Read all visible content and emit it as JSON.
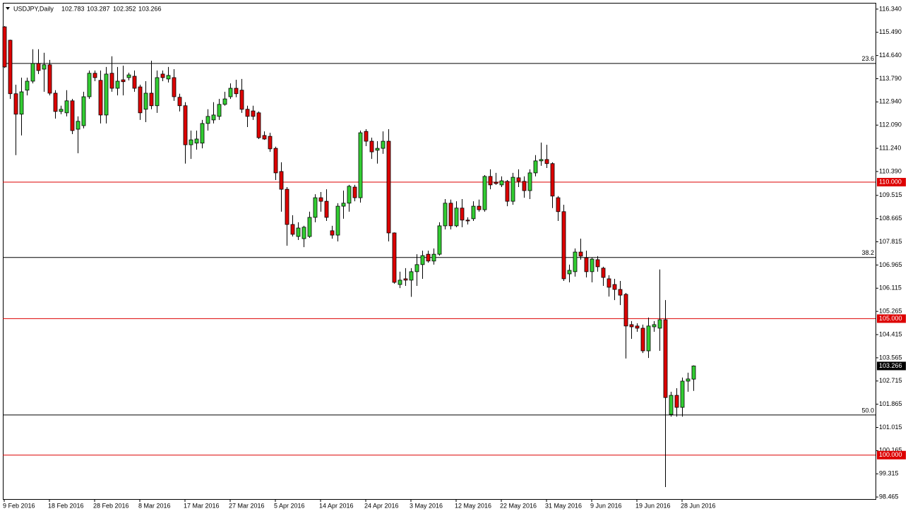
{
  "chart_data": {
    "type": "candlestick",
    "title": "USDJPY,Daily",
    "categories": [
      "9 Feb 2016",
      null,
      null,
      null,
      null,
      null,
      null,
      null,
      "18 Feb 2016",
      null,
      null,
      null,
      null,
      null,
      null,
      null,
      "28 Feb 2016",
      null,
      null,
      null,
      null,
      null,
      null,
      null,
      "8 Mar 2016",
      null,
      null,
      null,
      null,
      null,
      null,
      null,
      "17 Mar 2016",
      null,
      null,
      null,
      null,
      null,
      null,
      null,
      "27 Mar 2016",
      null,
      null,
      null,
      null,
      null,
      null,
      null,
      "5 Apr 2016",
      null,
      null,
      null,
      null,
      null,
      null,
      null,
      "14 Apr 2016",
      null,
      null,
      null,
      null,
      null,
      null,
      null,
      "24 Apr 2016",
      null,
      null,
      null,
      null,
      null,
      null,
      null,
      "3 May 2016",
      null,
      null,
      null,
      null,
      null,
      null,
      null,
      "12 May 2016",
      null,
      null,
      null,
      null,
      null,
      null,
      null,
      "22 May 2016",
      null,
      null,
      null,
      null,
      null,
      null,
      null,
      "31 May 2016",
      null,
      null,
      null,
      null,
      null,
      null,
      null,
      "9 Jun 2016",
      null,
      null,
      null,
      null,
      null,
      null,
      null,
      "19 Jun 2016",
      null,
      null,
      null,
      null,
      null,
      null,
      null,
      "28 Jun 2016",
      null,
      null
    ],
    "open": [
      115.69,
      115.2,
      113.24,
      112.49,
      113.37,
      113.7,
      114.35,
      114.14,
      114.3,
      113.26,
      112.59,
      112.54,
      112.98,
      111.94,
      112.07,
      113.13,
      113.99,
      113.73,
      112.46,
      113.99,
      113.44,
      113.75,
      113.83,
      113.88,
      113.49,
      112.67,
      113.26,
      112.8,
      113.96,
      113.78,
      113.83,
      113.11,
      112.8,
      111.37,
      111.43,
      111.43,
      112.15,
      112.28,
      112.41,
      112.85,
      113.13,
      113.44,
      113.37,
      112.67,
      112.61,
      112.54,
      111.71,
      111.68,
      111.24,
      110.39,
      109.74,
      108.45,
      108.01,
      107.93,
      108.01,
      108.71,
      109.43,
      109.3,
      108.22,
      108.06,
      109.12,
      109.23,
      109.82,
      109.43,
      111.86,
      111.5,
      111.17,
      111.24,
      111.5,
      108.14,
      106.25,
      106.46,
      106.41,
      106.72,
      106.98,
      107.36,
      107.11,
      107.36,
      108.4,
      109.23,
      108.4,
      109.05,
      108.61,
      108.66,
      109.12,
      108.99,
      110.21,
      110.0,
      109.9,
      110.03,
      109.3,
      110.16,
      110.03,
      109.69,
      110.34,
      110.78,
      110.83,
      110.68,
      109.43,
      108.92,
      106.64,
      106.72,
      107.44,
      107.23,
      106.72,
      107.16,
      106.85,
      106.46,
      106.25,
      106.07,
      105.89,
      104.78,
      104.73,
      104.65,
      103.82,
      104.7,
      104.65,
      104.96,
      101.49,
      102.19,
      101.75,
      102.71,
      102.783
    ],
    "high": [
      115.72,
      115.22,
      113.57,
      113.83,
      113.83,
      114.87,
      114.87,
      114.74,
      114.48,
      113.37,
      112.8,
      113.37,
      113.05,
      112.41,
      113.31,
      114.09,
      114.09,
      114.09,
      114.22,
      114.61,
      114.22,
      114.27,
      114.01,
      114.09,
      113.57,
      113.7,
      114.45,
      114.09,
      114.09,
      114.22,
      114.14,
      113.24,
      112.93,
      111.89,
      111.89,
      112.28,
      112.67,
      112.93,
      113.05,
      113.31,
      113.62,
      113.75,
      113.78,
      112.8,
      112.8,
      112.59,
      111.86,
      111.81,
      111.3,
      110.73,
      109.82,
      108.79,
      108.53,
      108.4,
      108.92,
      109.56,
      109.64,
      109.74,
      108.4,
      109.23,
      109.69,
      109.9,
      109.9,
      111.89,
      111.94,
      111.63,
      111.5,
      111.86,
      111.94,
      108.16,
      106.72,
      106.85,
      106.85,
      107.36,
      107.49,
      107.49,
      107.57,
      108.53,
      109.38,
      109.36,
      109.3,
      109.38,
      108.71,
      109.3,
      109.36,
      110.26,
      110.47,
      110.34,
      110.21,
      110.08,
      110.34,
      110.47,
      110.21,
      110.47,
      110.99,
      111.45,
      111.37,
      110.73,
      109.49,
      109.17,
      106.98,
      107.57,
      107.93,
      107.49,
      107.23,
      107.29,
      106.9,
      106.59,
      106.46,
      106.38,
      105.94,
      104.91,
      104.83,
      104.78,
      105.04,
      104.91,
      106.8,
      105.68,
      102.32,
      102.45,
      102.84,
      103.02,
      103.287
    ],
    "low": [
      114.18,
      113.05,
      110.99,
      111.71,
      113.18,
      113.62,
      113.96,
      113.31,
      113.18,
      112.33,
      112.49,
      112.41,
      111.76,
      111.06,
      111.97,
      113.05,
      113.7,
      112.15,
      112.15,
      113.31,
      113.18,
      113.18,
      113.73,
      113.31,
      112.28,
      112.2,
      112.67,
      112.54,
      113.7,
      113.65,
      112.98,
      112.59,
      110.68,
      110.85,
      111.19,
      111.24,
      111.89,
      112.15,
      112.28,
      112.8,
      113.05,
      113.11,
      112.54,
      112.02,
      112.28,
      111.58,
      111.55,
      111.11,
      110.08,
      108.92,
      107.67,
      108.01,
      107.88,
      107.62,
      107.96,
      108.53,
      108.92,
      108.58,
      107.93,
      107.83,
      108.66,
      108.92,
      109.3,
      109.25,
      111.32,
      110.85,
      110.68,
      111.04,
      107.83,
      106.28,
      106.12,
      106.2,
      105.8,
      106.2,
      106.46,
      107.05,
      106.98,
      107.31,
      108.27,
      108.27,
      108.35,
      108.35,
      108.45,
      108.58,
      108.92,
      108.92,
      109.74,
      109.9,
      109.82,
      109.12,
      109.17,
      109.82,
      109.43,
      109.38,
      110.21,
      110.6,
      110.52,
      109.05,
      108.58,
      106.38,
      106.33,
      106.54,
      107.16,
      106.51,
      106.33,
      106.72,
      106.2,
      105.81,
      105.68,
      105.5,
      103.54,
      104.26,
      104.52,
      103.74,
      103.56,
      104.52,
      103.82,
      98.83,
      101.41,
      101.41,
      101.41,
      102.32,
      102.352
    ],
    "close": [
      114.22,
      113.24,
      112.49,
      113.31,
      113.7,
      114.35,
      114.09,
      114.3,
      113.26,
      112.59,
      112.67,
      112.98,
      111.89,
      112.23,
      113.13,
      113.99,
      113.83,
      112.46,
      113.96,
      113.44,
      113.7,
      113.68,
      113.93,
      113.44,
      112.54,
      113.26,
      112.8,
      113.83,
      113.83,
      113.91,
      113.13,
      112.8,
      111.37,
      111.55,
      111.58,
      112.15,
      112.41,
      112.46,
      112.85,
      113.05,
      113.44,
      113.24,
      112.67,
      112.41,
      112.41,
      111.63,
      111.58,
      111.22,
      110.34,
      109.74,
      108.45,
      108.09,
      108.32,
      108.35,
      108.71,
      109.43,
      109.3,
      108.71,
      108.06,
      109.12,
      109.23,
      109.85,
      109.43,
      111.81,
      111.5,
      111.11,
      111.24,
      111.5,
      108.14,
      106.33,
      106.41,
      106.41,
      106.72,
      106.98,
      107.31,
      107.11,
      107.36,
      108.4,
      109.23,
      108.4,
      109.05,
      108.61,
      108.58,
      109.12,
      108.99,
      110.21,
      109.9,
      109.95,
      110.05,
      109.3,
      110.18,
      110.03,
      109.69,
      110.34,
      110.78,
      110.83,
      110.68,
      109.49,
      108.92,
      106.46,
      106.77,
      107.44,
      107.29,
      106.72,
      107.18,
      106.9,
      106.51,
      106.15,
      106.07,
      105.86,
      104.73,
      104.7,
      104.65,
      103.82,
      104.73,
      104.78,
      104.96,
      102.11,
      102.19,
      101.75,
      102.71,
      102.79,
      103.266
    ],
    "up_color": "#32cd32",
    "down_color": "#dd0000",
    "ylim": [
      98.39,
      116.57
    ],
    "yticks": [
      {
        "value": 116.34,
        "label": "116.340"
      },
      {
        "value": 115.49,
        "label": "115.490"
      },
      {
        "value": 114.64,
        "label": "114.640"
      },
      {
        "value": 113.79,
        "label": "113.790"
      },
      {
        "value": 112.94,
        "label": "112.940"
      },
      {
        "value": 112.09,
        "label": "112.090"
      },
      {
        "value": 111.24,
        "label": "111.240"
      },
      {
        "value": 110.39,
        "label": "110.390"
      },
      109.515,
      108.665,
      107.815,
      106.965,
      106.115,
      105.265,
      104.415,
      103.565,
      102.715,
      101.865,
      101.015,
      100.165,
      99.315,
      98.465
    ],
    "levels": [
      {
        "value": 110,
        "label": "110.000"
      },
      {
        "value": 105,
        "label": "105.000"
      },
      {
        "value": 100,
        "label": "100.000"
      }
    ],
    "level_color": "#dd0000",
    "fib_levels": [
      {
        "value": 114.35,
        "label": "23.6"
      },
      {
        "value": 107.24,
        "label": "38.2"
      },
      {
        "value": 101.47,
        "label": "50.0"
      }
    ]
  }
}
